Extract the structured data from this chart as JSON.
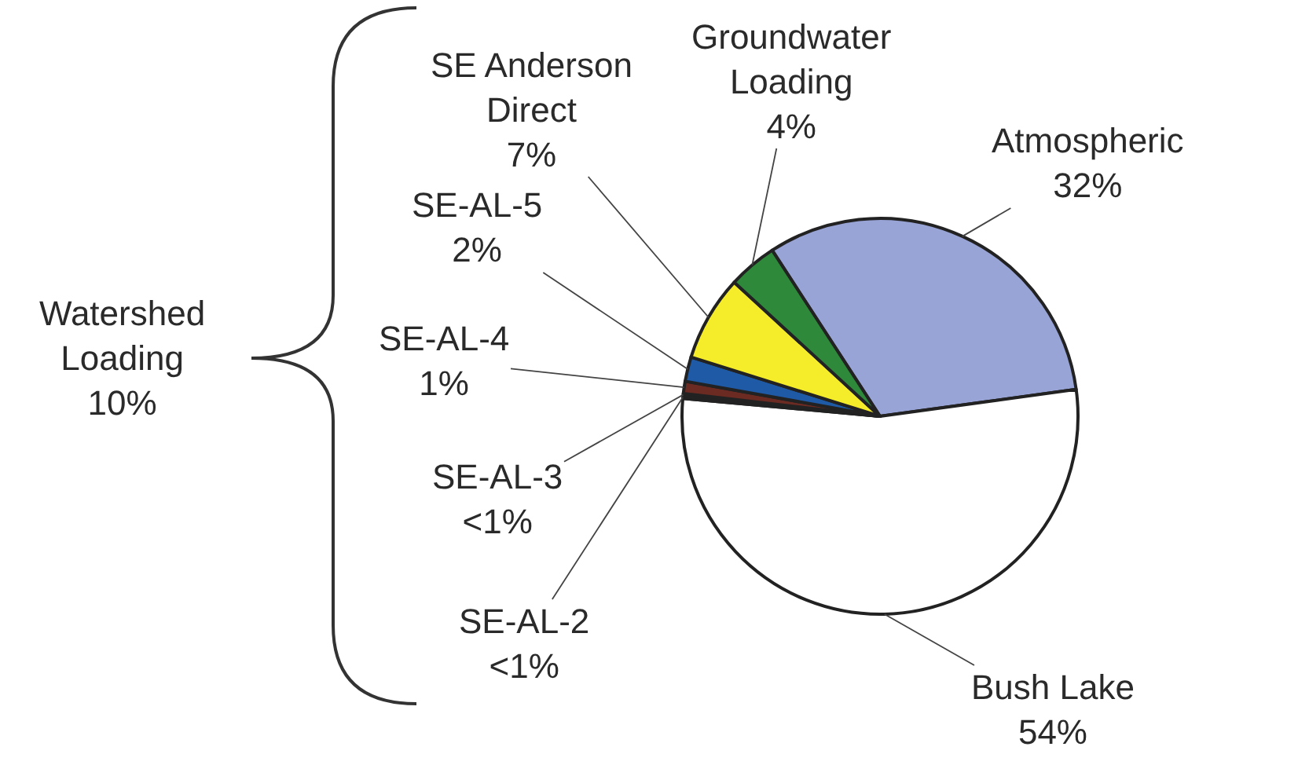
{
  "chart_data": {
    "type": "pie",
    "categories": [
      "Atmospheric",
      "Bush Lake",
      "SE-AL-2",
      "SE-AL-3",
      "SE-AL-4",
      "SE-AL-5",
      "SE Anderson Direct",
      "Groundwater Loading"
    ],
    "values": [
      32,
      53.6,
      0.2,
      0.2,
      1,
      2,
      7,
      4
    ],
    "value_labels": [
      "32%",
      "54%",
      "<1%",
      "<1%",
      "1%",
      "2%",
      "7%",
      "4%"
    ],
    "colors": [
      "#98a3d6",
      "#ffffff",
      "#c8c8c8",
      "#7f7f7f",
      "#6b2a22",
      "#1f5aa6",
      "#f5ec2a",
      "#2e8a3a"
    ],
    "annotations": [
      "Watershed Loading 10%"
    ]
  }
}
